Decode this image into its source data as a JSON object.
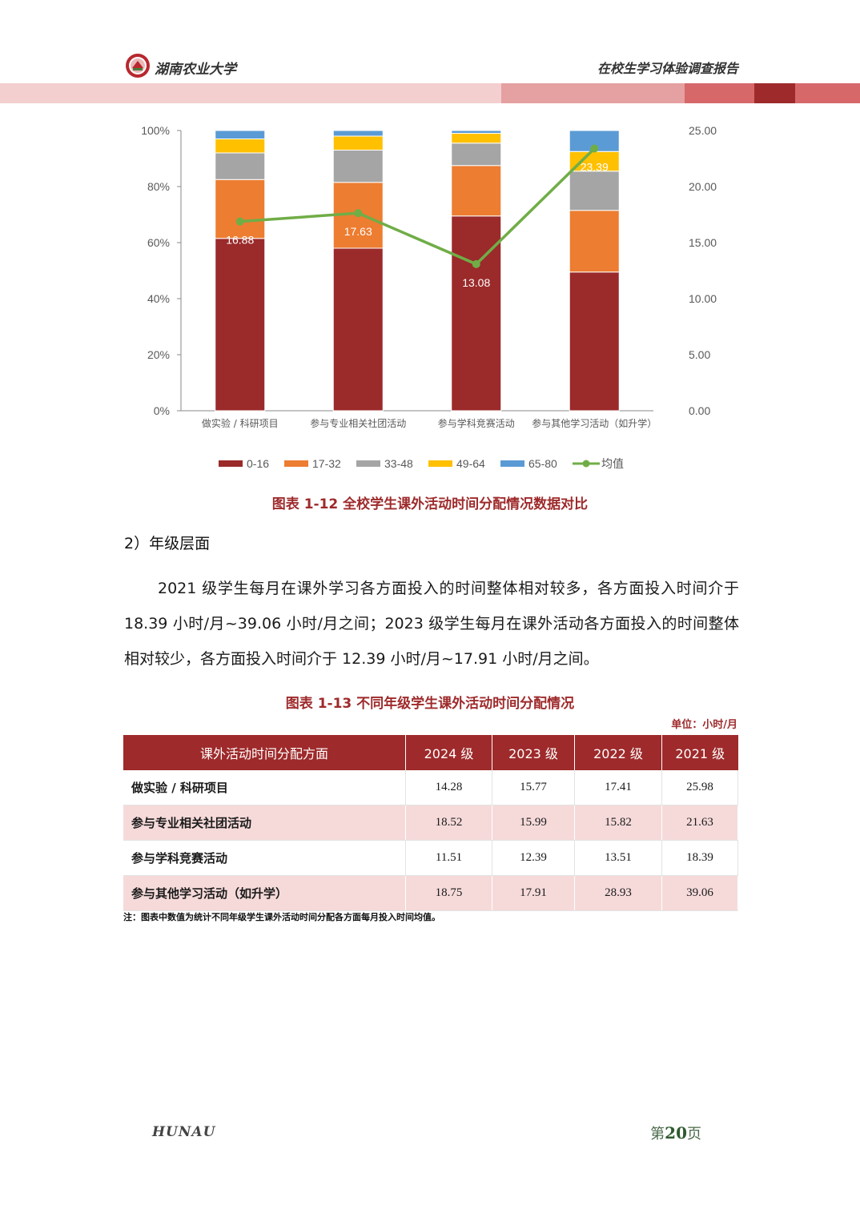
{
  "header": {
    "university": "湖南农业大学",
    "report_title": "在校生学习体验调查报告"
  },
  "chart_data": {
    "type": "bar",
    "stacked": true,
    "categories": [
      "做实验 / 科研项目",
      "参与专业相关社团活动",
      "参与学科竞赛活动",
      "参与其他学习活动（如升学）"
    ],
    "series": [
      {
        "name": "0-16",
        "color": "#9b2a2a",
        "values": [
          61.5,
          58,
          69.5,
          49.5
        ]
      },
      {
        "name": "17-32",
        "color": "#ed7d31",
        "values": [
          21,
          23.5,
          18,
          22
        ]
      },
      {
        "name": "33-48",
        "color": "#a5a5a5",
        "values": [
          9.5,
          11.5,
          8,
          14
        ]
      },
      {
        "name": "49-64",
        "color": "#ffc000",
        "values": [
          5,
          5,
          3.5,
          7
        ]
      },
      {
        "name": "65-80",
        "color": "#5b9bd5",
        "values": [
          3,
          2,
          1,
          7.5
        ]
      }
    ],
    "line": {
      "name": "均值",
      "color": "#70ad47",
      "values": [
        16.88,
        17.63,
        13.08,
        23.39
      ],
      "labels": [
        "16.88",
        "17.63",
        "13.08",
        "23.39"
      ]
    },
    "y_left": {
      "ticks": [
        "0%",
        "20%",
        "40%",
        "60%",
        "80%",
        "100%"
      ],
      "ylim": [
        0,
        100
      ]
    },
    "y_right": {
      "ticks": [
        "0.00",
        "5.00",
        "10.00",
        "15.00",
        "20.00",
        "25.00"
      ],
      "ylim": [
        0,
        25
      ]
    },
    "legend_position": "bottom"
  },
  "fig1_caption": "图表 1-12 全校学生课外活动时间分配情况数据对比",
  "section_title": "2）年级层面",
  "paragraph": "2021 级学生每月在课外学习各方面投入的时间整体相对较多，各方面投入时间介于 18.39 小时/月~39.06 小时/月之间；2023 级学生每月在课外活动各方面投入的时间整体相对较少，各方面投入时间介于 12.39 小时/月~17.91 小时/月之间。",
  "fig2_caption": "图表 1-13 不同年级学生课外活动时间分配情况",
  "unit": "单位：小时/月",
  "table": {
    "headers": [
      "课外活动时间分配方面",
      "2024 级",
      "2023 级",
      "2022 级",
      "2021 级"
    ],
    "rows": [
      [
        "做实验 / 科研项目",
        "14.28",
        "15.77",
        "17.41",
        "25.98"
      ],
      [
        "参与专业相关社团活动",
        "18.52",
        "15.99",
        "15.82",
        "21.63"
      ],
      [
        "参与学科竞赛活动",
        "11.51",
        "12.39",
        "13.51",
        "18.39"
      ],
      [
        "参与其他学习活动（如升学）",
        "18.75",
        "17.91",
        "28.93",
        "39.06"
      ]
    ]
  },
  "note": "注：图表中数值为统计不同年级学生课外活动时间分配各方面每月投入时间均值。",
  "footer": {
    "left": "HUNAU",
    "page_prefix": "第",
    "page_number": "20",
    "page_suffix": "页"
  },
  "colors": {
    "accent": "#9e2a2b",
    "row_shade": "#f6dada"
  }
}
